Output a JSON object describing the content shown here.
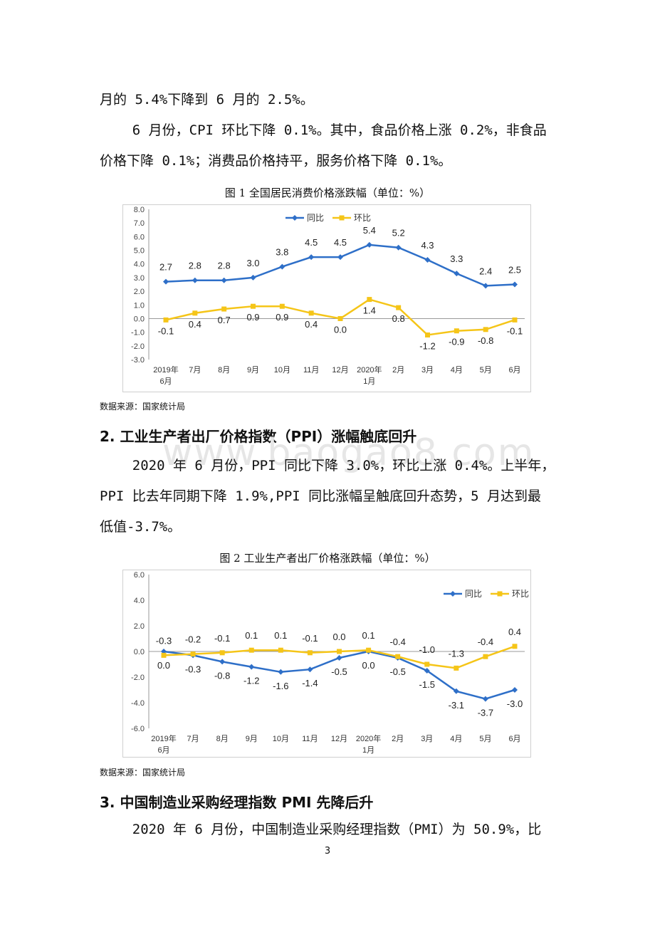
{
  "page": {
    "p1_line1": "月的 5.4%下降到 6 月的 2.5%。",
    "p2_line1": "    6 月份，CPI 环比下降 0.1%。其中，食品价格上涨 0.2%，非食品",
    "p2_line2": "价格下降 0.1%；消费品价格持平，服务价格下降 0.1%。",
    "fig1_caption": "图 1    全国居民消费价格涨跌幅（单位：%）",
    "fig1_source": "数据来源：国家统计局",
    "section2_heading": "2. 工业生产者出厂价格指数（PPI）涨幅触底回升",
    "p3_line1": "    2020 年 6 月份，PPI 同比下降 3.0%，环比上涨 0.4%。上半年，",
    "p3_line2": "PPI 比去年同期下降 1.9%,PPI 同比涨幅呈触底回升态势，5 月达到最",
    "p3_line3": "低值-3.7%。",
    "fig2_caption": "图 2    工业生产者出厂价格涨跌幅（单位：%）",
    "fig2_source": "数据来源：国家统计局",
    "section3_heading": "3. 中国制造业采购经理指数 PMI 先降后升",
    "p4_line1": "    2020 年 6 月份，中国制造业采购经理指数（PMI）为 50.9%，比",
    "watermark": "www.baogao8.com",
    "page_number": "3"
  },
  "chart_data": [
    {
      "type": "line",
      "title": "图 1    全国居民消费价格涨跌幅（单位：%）",
      "categories": [
        "2019年\n6月",
        "7月",
        "8月",
        "9月",
        "10月",
        "11月",
        "12月",
        "2020年\n1月",
        "2月",
        "3月",
        "4月",
        "5月",
        "6月"
      ],
      "series": [
        {
          "name": "同比",
          "color": "#2e6fc8",
          "marker": "diamond",
          "values": [
            2.7,
            2.8,
            2.8,
            3.0,
            3.8,
            4.5,
            4.5,
            5.4,
            5.2,
            4.3,
            3.3,
            2.4,
            2.5
          ]
        },
        {
          "name": "环比",
          "color": "#f5c518",
          "marker": "square",
          "values": [
            -0.1,
            0.4,
            0.7,
            0.9,
            0.9,
            0.4,
            0.0,
            1.4,
            0.8,
            -1.2,
            -0.9,
            -0.8,
            -0.1
          ]
        }
      ],
      "ylim": [
        -3.0,
        8.0
      ],
      "yticks": [
        "8.0",
        "7.0",
        "6.0",
        "5.0",
        "4.0",
        "3.0",
        "2.0",
        "1.0",
        "0.0",
        "-1.0",
        "-2.0",
        "-3.0"
      ],
      "legend": "top-center",
      "grid": false
    },
    {
      "type": "line",
      "title": "图 2    工业生产者出厂价格涨跌幅（单位：%）",
      "categories": [
        "2019年\n6月",
        "7月",
        "8月",
        "9月",
        "10月",
        "11月",
        "12月",
        "2020年\n1月",
        "2月",
        "3月",
        "4月",
        "5月",
        "6月"
      ],
      "series": [
        {
          "name": "同比",
          "color": "#2e6fc8",
          "marker": "diamond",
          "values": [
            0.0,
            -0.3,
            -0.8,
            -1.2,
            -1.6,
            -1.4,
            -0.5,
            0.0,
            -0.5,
            -1.5,
            -3.1,
            -3.7,
            -3.0
          ]
        },
        {
          "name": "环比",
          "color": "#f5c518",
          "marker": "square",
          "values": [
            -0.3,
            -0.2,
            -0.1,
            0.1,
            0.1,
            -0.1,
            0.0,
            0.1,
            -0.4,
            -1.0,
            -1.3,
            -0.4,
            0.4
          ]
        }
      ],
      "ylim": [
        -6.0,
        6.0
      ],
      "yticks": [
        "6.0",
        "4.0",
        "2.0",
        "0.0",
        "-2.0",
        "-4.0",
        "-6.0"
      ],
      "legend": "top-right",
      "grid": false
    }
  ]
}
